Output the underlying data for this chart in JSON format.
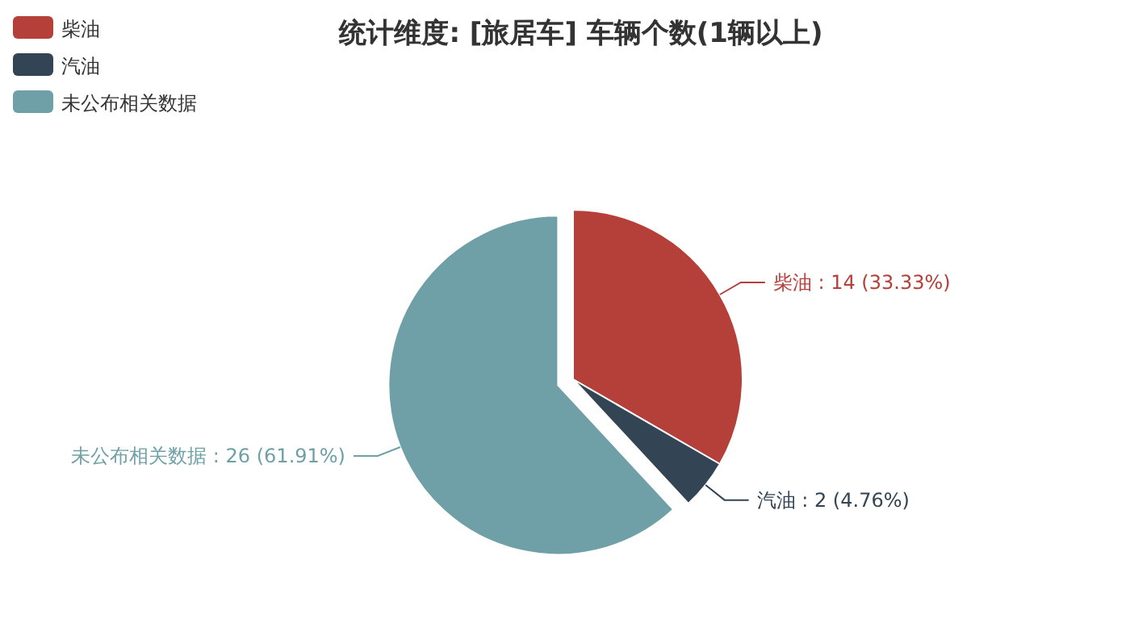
{
  "chart_data": {
    "type": "pie",
    "title": "统计维度: [旅居车] 车辆个数(1辆以上)",
    "categories": [
      "柴油",
      "汽油",
      "未公布相关数据"
    ],
    "values": [
      14,
      2,
      26
    ],
    "colors": [
      "#b5403a",
      "#334555",
      "#6fa0a8"
    ],
    "value_labels": [
      "柴油 : 14 (33.33%)",
      "汽油 : 2 (4.76%)",
      "未公布相关数据 : 26 (61.91%)"
    ],
    "legend": "top left"
  }
}
